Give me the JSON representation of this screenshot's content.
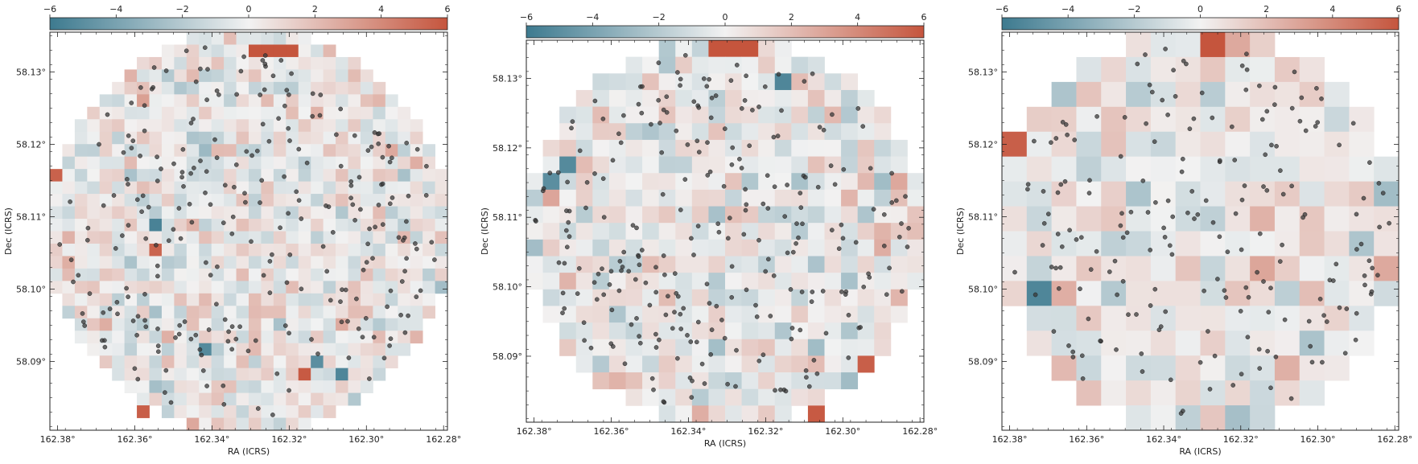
{
  "palette": {
    "neg": "#3d7a8f",
    "mid": "#f2f2f2",
    "pos": "#c5553d",
    "dot": "#3a3a3a"
  },
  "chart_data": [
    {
      "type": "heatmap",
      "xlabel": "RA (ICRS)",
      "ylabel": "Dec (ICRS)",
      "colorbar": {
        "range": [
          -6,
          6
        ],
        "ticks": [
          "−6",
          "−4",
          "−2",
          "0",
          "2",
          "4",
          "6"
        ],
        "position": "top"
      },
      "xlim": [
        162.382,
        162.279
      ],
      "ylim": [
        58.0805,
        58.1355
      ],
      "x_ticks": [
        162.38,
        162.36,
        162.34,
        162.32,
        162.3,
        162.28
      ],
      "x_tick_labels": [
        "162.38°",
        "162.36°",
        "162.34°",
        "162.32°",
        "162.30°",
        "162.28°"
      ],
      "y_ticks": [
        58.09,
        58.1,
        58.11,
        58.12,
        58.13
      ],
      "y_tick_labels": [
        "58.09°",
        "58.10°",
        "58.11°",
        "58.12°",
        "58.13°"
      ],
      "grid": {
        "nx": 32,
        "ny": 32,
        "seed": 11
      },
      "overlay": "scatter",
      "overlay_count": 260,
      "extremes": [
        {
          "col": 8,
          "row": 15,
          "value": -5.6
        },
        {
          "col": 8,
          "row": 17,
          "value": 5.4
        },
        {
          "col": 12,
          "row": 25,
          "value": -5.2
        },
        {
          "col": 21,
          "row": 26,
          "value": -5.0
        },
        {
          "col": 20,
          "row": 27,
          "value": 5.8
        },
        {
          "col": 23,
          "row": 27,
          "value": -5.4
        },
        {
          "col": 7,
          "row": 30,
          "value": 5.6
        },
        {
          "col": 0,
          "row": 11,
          "value": 5.5
        },
        {
          "col": 16,
          "row": 1,
          "value": 6.0
        },
        {
          "col": 17,
          "row": 1,
          "value": 6.0
        },
        {
          "col": 18,
          "row": 1,
          "value": 6.0
        },
        {
          "col": 19,
          "row": 1,
          "value": 6.0
        }
      ]
    },
    {
      "type": "heatmap",
      "xlabel": "RA (ICRS)",
      "ylabel": "Dec (ICRS)",
      "colorbar": {
        "range": [
          -6,
          6
        ],
        "ticks": [
          "−6",
          "−4",
          "−2",
          "0",
          "2",
          "4",
          "6"
        ],
        "position": "top"
      },
      "xlim": [
        162.382,
        162.279
      ],
      "ylim": [
        58.0805,
        58.1355
      ],
      "x_ticks": [
        162.38,
        162.36,
        162.34,
        162.32,
        162.3,
        162.28
      ],
      "x_tick_labels": [
        "162.38°",
        "162.36°",
        "162.34°",
        "162.32°",
        "162.30°",
        "162.28°"
      ],
      "y_ticks": [
        58.09,
        58.1,
        58.11,
        58.12,
        58.13
      ],
      "y_tick_labels": [
        "58.09°",
        "58.10°",
        "58.11°",
        "58.12°",
        "58.13°"
      ],
      "grid": {
        "nx": 24,
        "ny": 23,
        "seed": 27
      },
      "overlay": "scatter",
      "overlay_count": 260,
      "extremes": [
        {
          "col": 11,
          "row": 0,
          "value": 6.0
        },
        {
          "col": 12,
          "row": 0,
          "value": 6.0
        },
        {
          "col": 13,
          "row": 0,
          "value": 6.0
        },
        {
          "col": 15,
          "row": 2,
          "value": -5.4
        },
        {
          "col": 2,
          "row": 7,
          "value": -5.2
        },
        {
          "col": 1,
          "row": 8,
          "value": -5.0
        },
        {
          "col": 20,
          "row": 19,
          "value": 5.6
        },
        {
          "col": 17,
          "row": 22,
          "value": 5.8
        }
      ]
    },
    {
      "type": "heatmap",
      "xlabel": "RA (ICRS)",
      "ylabel": "Dec (ICRS)",
      "colorbar": {
        "range": [
          -6,
          6
        ],
        "ticks": [
          "−6",
          "−4",
          "−2",
          "0",
          "2",
          "4",
          "6"
        ],
        "position": "top"
      },
      "xlim": [
        162.382,
        162.279
      ],
      "ylim": [
        58.0805,
        58.1355
      ],
      "x_ticks": [
        162.38,
        162.36,
        162.34,
        162.32,
        162.3,
        162.28
      ],
      "x_tick_labels": [
        "162.38°",
        "162.36°",
        "162.34°",
        "162.32°",
        "162.30°",
        "162.28°"
      ],
      "y_ticks": [
        58.09,
        58.1,
        58.11,
        58.12,
        58.13
      ],
      "y_tick_labels": [
        "58.09°",
        "58.10°",
        "58.11°",
        "58.12°",
        "58.13°"
      ],
      "grid": {
        "nx": 16,
        "ny": 16,
        "seed": 43
      },
      "overlay": "scatter",
      "overlay_count": 200,
      "extremes": [
        {
          "col": 8,
          "row": 0,
          "value": 6.0
        },
        {
          "col": 9,
          "row": 0,
          "value": 2.8
        },
        {
          "col": 0,
          "row": 4,
          "value": 5.6
        },
        {
          "col": 1,
          "row": 10,
          "value": -5.4
        },
        {
          "col": 2,
          "row": 10,
          "value": 2.6
        },
        {
          "col": 15,
          "row": 9,
          "value": 2.8
        }
      ]
    }
  ]
}
